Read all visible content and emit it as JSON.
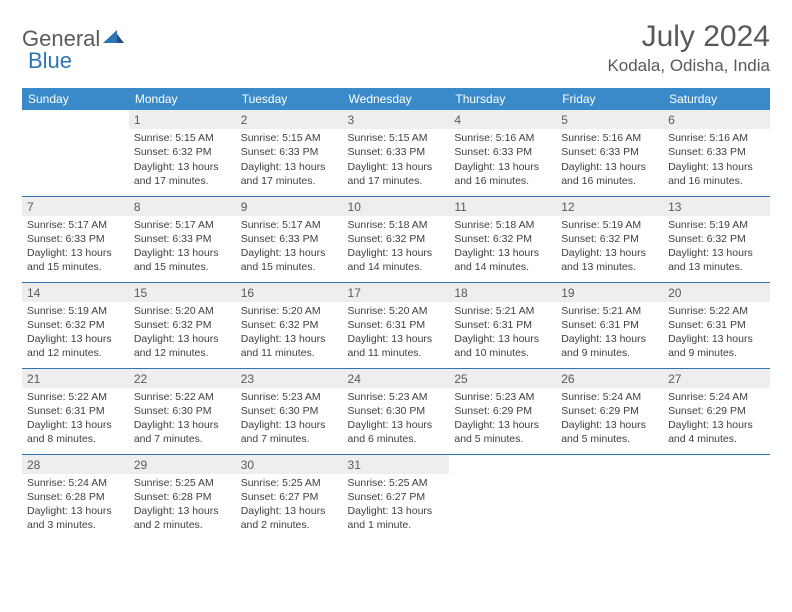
{
  "logo": {
    "general": "General",
    "blue": "Blue"
  },
  "title": "July 2024",
  "location": "Kodala, Odisha, India",
  "colors": {
    "header_bg": "#3a8ac9",
    "header_text": "#ffffff",
    "rule": "#2e75b6",
    "daynum_bg": "#eeeeee",
    "text": "#404040",
    "title_text": "#595959"
  },
  "weekdays": [
    "Sunday",
    "Monday",
    "Tuesday",
    "Wednesday",
    "Thursday",
    "Friday",
    "Saturday"
  ],
  "weeks": [
    [
      null,
      {
        "n": "1",
        "sr": "Sunrise: 5:15 AM",
        "ss": "Sunset: 6:32 PM",
        "d1": "Daylight: 13 hours",
        "d2": "and 17 minutes."
      },
      {
        "n": "2",
        "sr": "Sunrise: 5:15 AM",
        "ss": "Sunset: 6:33 PM",
        "d1": "Daylight: 13 hours",
        "d2": "and 17 minutes."
      },
      {
        "n": "3",
        "sr": "Sunrise: 5:15 AM",
        "ss": "Sunset: 6:33 PM",
        "d1": "Daylight: 13 hours",
        "d2": "and 17 minutes."
      },
      {
        "n": "4",
        "sr": "Sunrise: 5:16 AM",
        "ss": "Sunset: 6:33 PM",
        "d1": "Daylight: 13 hours",
        "d2": "and 16 minutes."
      },
      {
        "n": "5",
        "sr": "Sunrise: 5:16 AM",
        "ss": "Sunset: 6:33 PM",
        "d1": "Daylight: 13 hours",
        "d2": "and 16 minutes."
      },
      {
        "n": "6",
        "sr": "Sunrise: 5:16 AM",
        "ss": "Sunset: 6:33 PM",
        "d1": "Daylight: 13 hours",
        "d2": "and 16 minutes."
      }
    ],
    [
      {
        "n": "7",
        "sr": "Sunrise: 5:17 AM",
        "ss": "Sunset: 6:33 PM",
        "d1": "Daylight: 13 hours",
        "d2": "and 15 minutes."
      },
      {
        "n": "8",
        "sr": "Sunrise: 5:17 AM",
        "ss": "Sunset: 6:33 PM",
        "d1": "Daylight: 13 hours",
        "d2": "and 15 minutes."
      },
      {
        "n": "9",
        "sr": "Sunrise: 5:17 AM",
        "ss": "Sunset: 6:33 PM",
        "d1": "Daylight: 13 hours",
        "d2": "and 15 minutes."
      },
      {
        "n": "10",
        "sr": "Sunrise: 5:18 AM",
        "ss": "Sunset: 6:32 PM",
        "d1": "Daylight: 13 hours",
        "d2": "and 14 minutes."
      },
      {
        "n": "11",
        "sr": "Sunrise: 5:18 AM",
        "ss": "Sunset: 6:32 PM",
        "d1": "Daylight: 13 hours",
        "d2": "and 14 minutes."
      },
      {
        "n": "12",
        "sr": "Sunrise: 5:19 AM",
        "ss": "Sunset: 6:32 PM",
        "d1": "Daylight: 13 hours",
        "d2": "and 13 minutes."
      },
      {
        "n": "13",
        "sr": "Sunrise: 5:19 AM",
        "ss": "Sunset: 6:32 PM",
        "d1": "Daylight: 13 hours",
        "d2": "and 13 minutes."
      }
    ],
    [
      {
        "n": "14",
        "sr": "Sunrise: 5:19 AM",
        "ss": "Sunset: 6:32 PM",
        "d1": "Daylight: 13 hours",
        "d2": "and 12 minutes."
      },
      {
        "n": "15",
        "sr": "Sunrise: 5:20 AM",
        "ss": "Sunset: 6:32 PM",
        "d1": "Daylight: 13 hours",
        "d2": "and 12 minutes."
      },
      {
        "n": "16",
        "sr": "Sunrise: 5:20 AM",
        "ss": "Sunset: 6:32 PM",
        "d1": "Daylight: 13 hours",
        "d2": "and 11 minutes."
      },
      {
        "n": "17",
        "sr": "Sunrise: 5:20 AM",
        "ss": "Sunset: 6:31 PM",
        "d1": "Daylight: 13 hours",
        "d2": "and 11 minutes."
      },
      {
        "n": "18",
        "sr": "Sunrise: 5:21 AM",
        "ss": "Sunset: 6:31 PM",
        "d1": "Daylight: 13 hours",
        "d2": "and 10 minutes."
      },
      {
        "n": "19",
        "sr": "Sunrise: 5:21 AM",
        "ss": "Sunset: 6:31 PM",
        "d1": "Daylight: 13 hours",
        "d2": "and 9 minutes."
      },
      {
        "n": "20",
        "sr": "Sunrise: 5:22 AM",
        "ss": "Sunset: 6:31 PM",
        "d1": "Daylight: 13 hours",
        "d2": "and 9 minutes."
      }
    ],
    [
      {
        "n": "21",
        "sr": "Sunrise: 5:22 AM",
        "ss": "Sunset: 6:31 PM",
        "d1": "Daylight: 13 hours",
        "d2": "and 8 minutes."
      },
      {
        "n": "22",
        "sr": "Sunrise: 5:22 AM",
        "ss": "Sunset: 6:30 PM",
        "d1": "Daylight: 13 hours",
        "d2": "and 7 minutes."
      },
      {
        "n": "23",
        "sr": "Sunrise: 5:23 AM",
        "ss": "Sunset: 6:30 PM",
        "d1": "Daylight: 13 hours",
        "d2": "and 7 minutes."
      },
      {
        "n": "24",
        "sr": "Sunrise: 5:23 AM",
        "ss": "Sunset: 6:30 PM",
        "d1": "Daylight: 13 hours",
        "d2": "and 6 minutes."
      },
      {
        "n": "25",
        "sr": "Sunrise: 5:23 AM",
        "ss": "Sunset: 6:29 PM",
        "d1": "Daylight: 13 hours",
        "d2": "and 5 minutes."
      },
      {
        "n": "26",
        "sr": "Sunrise: 5:24 AM",
        "ss": "Sunset: 6:29 PM",
        "d1": "Daylight: 13 hours",
        "d2": "and 5 minutes."
      },
      {
        "n": "27",
        "sr": "Sunrise: 5:24 AM",
        "ss": "Sunset: 6:29 PM",
        "d1": "Daylight: 13 hours",
        "d2": "and 4 minutes."
      }
    ],
    [
      {
        "n": "28",
        "sr": "Sunrise: 5:24 AM",
        "ss": "Sunset: 6:28 PM",
        "d1": "Daylight: 13 hours",
        "d2": "and 3 minutes."
      },
      {
        "n": "29",
        "sr": "Sunrise: 5:25 AM",
        "ss": "Sunset: 6:28 PM",
        "d1": "Daylight: 13 hours",
        "d2": "and 2 minutes."
      },
      {
        "n": "30",
        "sr": "Sunrise: 5:25 AM",
        "ss": "Sunset: 6:27 PM",
        "d1": "Daylight: 13 hours",
        "d2": "and 2 minutes."
      },
      {
        "n": "31",
        "sr": "Sunrise: 5:25 AM",
        "ss": "Sunset: 6:27 PM",
        "d1": "Daylight: 13 hours",
        "d2": "and 1 minute."
      },
      null,
      null,
      null
    ]
  ]
}
